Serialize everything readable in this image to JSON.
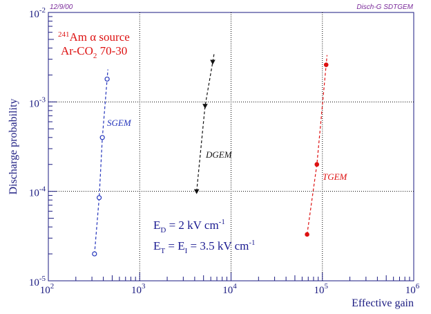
{
  "header": {
    "date": "12/9/00",
    "tag": "Disch-G SDTGEM"
  },
  "chart_data": {
    "type": "scatter",
    "title": "",
    "xlabel": "Effective gain",
    "ylabel": "Discharge probability",
    "xscale": "log",
    "yscale": "log",
    "xlim": [
      100,
      1000000
    ],
    "ylim": [
      1e-05,
      0.01
    ],
    "x_ticks": [
      {
        "base": "10",
        "exp": "2"
      },
      {
        "base": "10",
        "exp": "3"
      },
      {
        "base": "10",
        "exp": "4"
      },
      {
        "base": "10",
        "exp": "5"
      },
      {
        "base": "10",
        "exp": "6"
      }
    ],
    "y_ticks": [
      {
        "base": "10",
        "exp": "-5"
      },
      {
        "base": "10",
        "exp": "-4"
      },
      {
        "base": "10",
        "exp": "-3"
      },
      {
        "base": "10",
        "exp": "-2"
      }
    ],
    "grid": "dotted at decades",
    "series": [
      {
        "name": "SGEM",
        "color": "#2233bb",
        "marker": "open-circle",
        "points": [
          [
            320,
            2e-05
          ],
          [
            360,
            8.5e-05
          ],
          [
            390,
            0.0004
          ],
          [
            440,
            0.0018
          ]
        ]
      },
      {
        "name": "DGEM",
        "color": "#111111",
        "marker": "filled-triangle-down",
        "points": [
          [
            4200,
            0.0001
          ],
          [
            5200,
            0.0009
          ],
          [
            6300,
            0.0028
          ]
        ]
      },
      {
        "name": "TGEM",
        "color": "#dd1111",
        "marker": "filled-circle",
        "points": [
          [
            68000,
            3.3e-05
          ],
          [
            87000,
            0.0002
          ],
          [
            110000,
            0.0026
          ]
        ]
      }
    ]
  },
  "annotations": {
    "source": {
      "sup": "241",
      "main": "Am ",
      "alpha": "α",
      "rest": " source"
    },
    "gas": {
      "pre": "Ar-CO",
      "sub": "2",
      "post": " 70-30"
    },
    "ed": {
      "pre": "E",
      "sub": "D",
      "post": " = 2 kV cm",
      "sup": "-1"
    },
    "et": {
      "pre": "E",
      "sub1": "T",
      "mid": " = E",
      "sub2": "I",
      "post": " = 3.5 kV cm",
      "sup": "-1"
    }
  }
}
